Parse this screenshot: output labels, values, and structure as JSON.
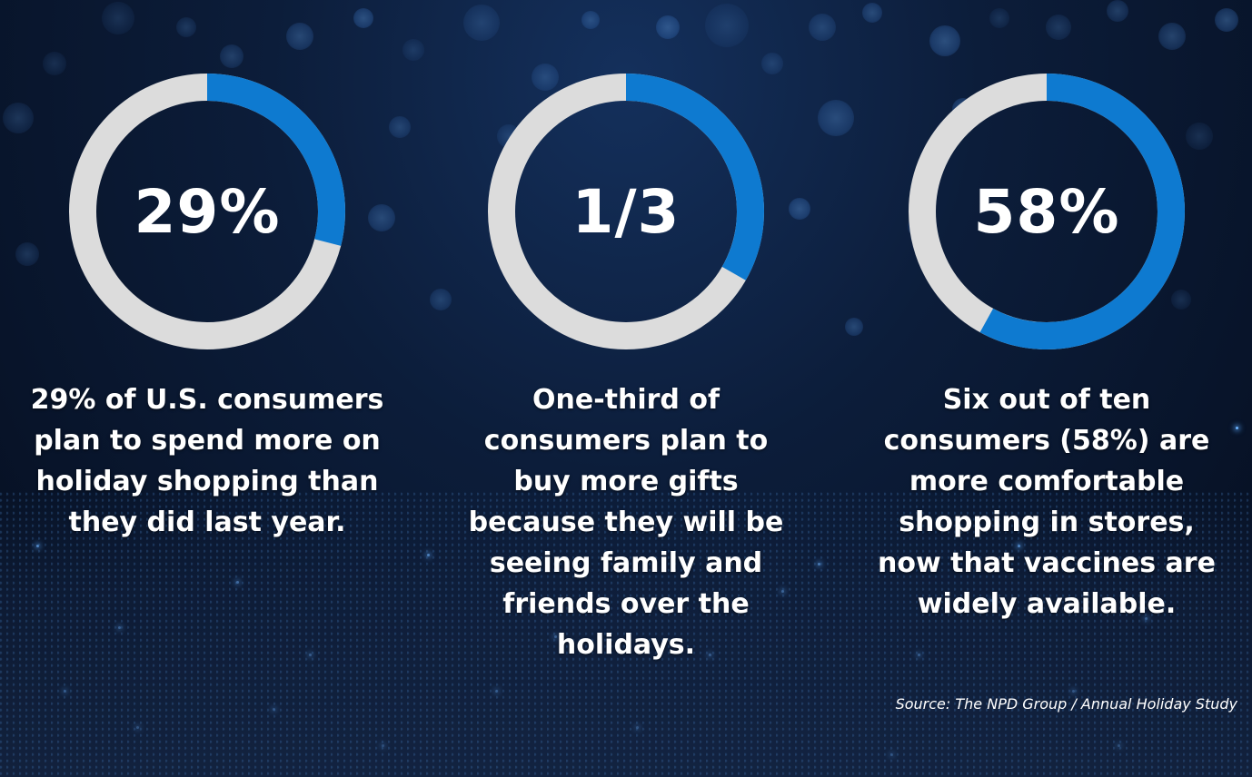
{
  "chart_data": [
    {
      "type": "donut",
      "value_percent": 29,
      "center_label": "29%",
      "caption": "29% of U.S. consumers plan to spend more on holiday shopping than they did last year.",
      "fill_color": "#0e7ad0",
      "track_color": "#dcdcdc"
    },
    {
      "type": "donut",
      "value_percent": 33.3,
      "center_label": "1/3",
      "caption": "One-third of consumers plan to buy more gifts because they will be seeing family and friends over the holidays.",
      "fill_color": "#0e7ad0",
      "track_color": "#dcdcdc"
    },
    {
      "type": "donut",
      "value_percent": 58,
      "center_label": "58%",
      "caption": "Six out of ten consumers (58%) are more comfortable shopping in stores, now that vaccines are widely available.",
      "fill_color": "#0e7ad0",
      "track_color": "#dcdcdc"
    }
  ],
  "source": "Source: The NPD Group / Annual Holiday Study"
}
